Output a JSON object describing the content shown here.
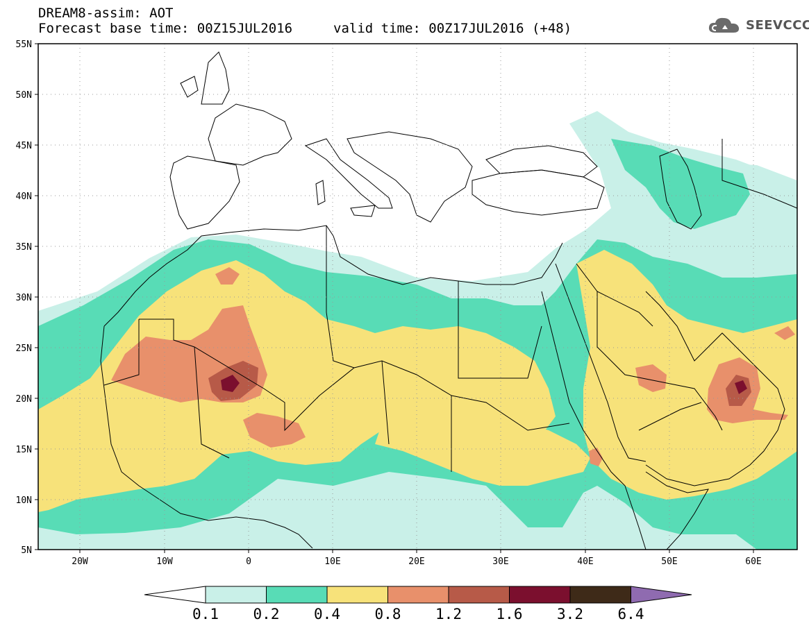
{
  "header": {
    "line1": "DREAM8-assim: AOT",
    "line2": "Forecast base time: 00Z15JUL2016",
    "valid": "valid time: 00Z17JUL2016 (+48)"
  },
  "logo": {
    "text": "SEEVCCC",
    "icon": "cloud-icon"
  },
  "axes": {
    "lat_ticks": [
      "55N",
      "50N",
      "45N",
      "40N",
      "35N",
      "30N",
      "25N",
      "20N",
      "15N",
      "10N",
      "5N"
    ],
    "lon_ticks": [
      "20W",
      "10W",
      "0",
      "10E",
      "20E",
      "30E",
      "40E",
      "50E",
      "60E"
    ]
  },
  "colorbar": {
    "labels": [
      "0.1",
      "0.2",
      "0.4",
      "0.8",
      "1.2",
      "1.6",
      "3.2",
      "6.4"
    ],
    "colors": [
      "#ffffff",
      "#c9f0e8",
      "#58dcb6",
      "#f7e27a",
      "#e8906b",
      "#b75a48",
      "#7b0f2e",
      "#3e2a18",
      "#8f6bb0"
    ]
  },
  "colors": {
    "c0": "#c9f0e8",
    "c1": "#58dcb6",
    "c2": "#f7e27a",
    "c3": "#e8906b",
    "c4": "#b75a48",
    "c5": "#7b0f2e"
  }
}
